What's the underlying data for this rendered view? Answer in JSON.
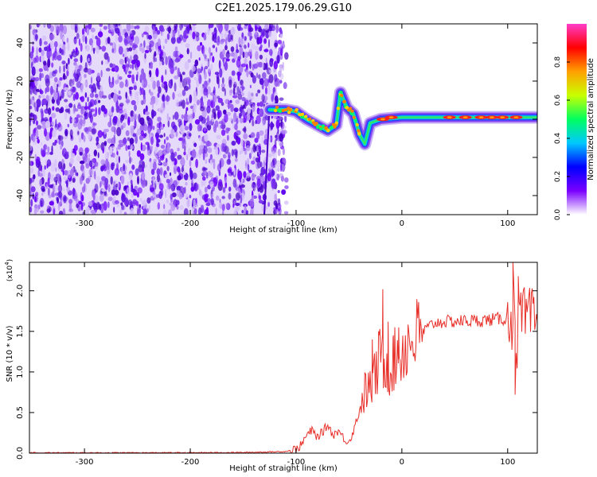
{
  "title": "C2E1.2025.179.06.29.G10",
  "chart_data": [
    {
      "type": "heatmap",
      "xlabel": "Height of straight line (km)",
      "ylabel": "Frequency (Hz)",
      "xlim": [
        -352,
        128
      ],
      "ylim": [
        -50,
        50
      ],
      "xticks": [
        -300,
        -200,
        -100,
        0,
        100
      ],
      "yticks": [
        -40,
        -20,
        0,
        20,
        40
      ],
      "xtick_labels": [
        "-300",
        "-200",
        "-100",
        "0",
        "100"
      ],
      "ytick_labels": [
        "-40",
        "-20",
        "0",
        "20",
        "40"
      ],
      "noise_region_x": [
        -352,
        -118
      ],
      "signal_track": [
        {
          "x": -125,
          "y": 5
        },
        {
          "x": -110,
          "y": 5
        },
        {
          "x": -100,
          "y": 4
        },
        {
          "x": -90,
          "y": 0
        },
        {
          "x": -80,
          "y": -3
        },
        {
          "x": -70,
          "y": -6
        },
        {
          "x": -62,
          "y": -3
        },
        {
          "x": -58,
          "y": 14
        },
        {
          "x": -52,
          "y": 6
        },
        {
          "x": -46,
          "y": 3
        },
        {
          "x": -40,
          "y": -8
        },
        {
          "x": -35,
          "y": -13
        },
        {
          "x": -30,
          "y": -2
        },
        {
          "x": -20,
          "y": 0
        },
        {
          "x": 0,
          "y": 1
        },
        {
          "x": 40,
          "y": 1
        },
        {
          "x": 80,
          "y": 1
        },
        {
          "x": 110,
          "y": 1
        },
        {
          "x": 128,
          "y": 1
        }
      ],
      "strong_peaks": [
        {
          "x": -18,
          "y": 0
        },
        {
          "x": -10,
          "y": 1
        },
        {
          "x": 45,
          "y": 1
        },
        {
          "x": 60,
          "y": 1
        },
        {
          "x": 75,
          "y": 1
        },
        {
          "x": 85,
          "y": 1
        },
        {
          "x": 95,
          "y": 1
        },
        {
          "x": 108,
          "y": 1
        }
      ],
      "grid": false,
      "colorbar": {
        "label": "Normalized spectral amplitude",
        "range": [
          0,
          1
        ],
        "ticks": [
          0.0,
          0.2,
          0.4,
          0.6,
          0.8
        ],
        "tick_labels": [
          "0.0",
          "0.2",
          "0.4",
          "0.6",
          "0.8"
        ],
        "colors": [
          "#ffffff",
          "#7a00ff",
          "#0000ff",
          "#00c8ff",
          "#00ff60",
          "#c8ff00",
          "#ffa000",
          "#ff0000",
          "#ff3cc8"
        ]
      }
    },
    {
      "type": "line",
      "xlabel": "Height of straight line (km)",
      "ylabel": "SNR (10 * v/v)",
      "exponent_label": "(x10",
      "exponent_power": "4",
      "exponent_close": ")",
      "xlim": [
        -352,
        128
      ],
      "ylim": [
        0,
        2.35
      ],
      "xticks": [
        -300,
        -200,
        -100,
        0,
        100
      ],
      "yticks": [
        0.0,
        0.5,
        1.0,
        1.5,
        2.0
      ],
      "xtick_labels": [
        "-300",
        "-200",
        "-100",
        "0",
        "100"
      ],
      "ytick_labels": [
        "0.0",
        "0.5",
        "1.0",
        "1.5",
        "2.0"
      ],
      "series": [
        {
          "color": "#e8302a",
          "x": [
            -352,
            -300,
            -250,
            -200,
            -150,
            -110,
            -100,
            -95,
            -90,
            -85,
            -80,
            -75,
            -70,
            -65,
            -60,
            -55,
            -50,
            -45,
            -40,
            -35,
            -30,
            -25,
            -20,
            -15,
            -10,
            -5,
            0,
            5,
            10,
            20,
            30,
            40,
            50,
            60,
            70,
            80,
            90,
            100,
            104,
            106,
            108,
            110,
            115,
            120,
            128
          ],
          "y": [
            0.005,
            0.005,
            0.005,
            0.006,
            0.008,
            0.02,
            0.05,
            0.1,
            0.22,
            0.28,
            0.2,
            0.26,
            0.35,
            0.22,
            0.28,
            0.18,
            0.14,
            0.3,
            0.55,
            0.75,
            0.8,
            0.95,
            1.2,
            1.1,
            1.05,
            1.2,
            1.25,
            1.35,
            1.4,
            1.5,
            1.6,
            1.62,
            1.62,
            1.63,
            1.63,
            1.64,
            1.65,
            1.66,
            1.67,
            2.2,
            1.0,
            1.65,
            1.64,
            1.64,
            1.63
          ]
        }
      ],
      "spikes": [
        {
          "x": -18,
          "y": 2.02
        },
        {
          "x": -22,
          "y": 1.5
        },
        {
          "x": -28,
          "y": 1.4
        },
        {
          "x": -13,
          "y": 1.62
        },
        {
          "x": -8,
          "y": 1.45
        },
        {
          "x": -3,
          "y": 1.55
        },
        {
          "x": 105,
          "y": 2.35
        },
        {
          "x": 107,
          "y": 0.72
        },
        {
          "x": 110,
          "y": 2.18
        }
      ],
      "grid": false
    }
  ]
}
